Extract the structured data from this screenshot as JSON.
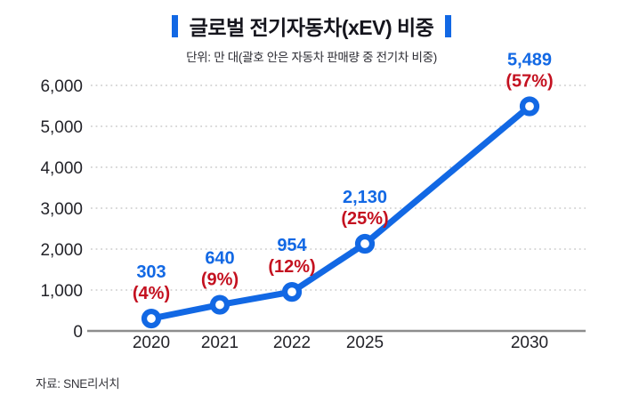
{
  "title": "글로벌 전기자동차(xEV) 비중",
  "subtitle": "단위: 만 대(괄호 안은 자동차 판매량 중 전기차 비중)",
  "source": "자료: SNE리서치",
  "colors": {
    "accent_blue": "#1268e4",
    "percent_red": "#c41120",
    "grid": "#cbcbcb",
    "axis_line": "#8d8d8d",
    "tick_text": "#232329"
  },
  "chart_data": {
    "type": "line",
    "categories": [
      "2020",
      "2021",
      "2022",
      "2025",
      "2030"
    ],
    "values": [
      303,
      640,
      954,
      2130,
      5489
    ],
    "value_labels": [
      "303",
      "640",
      "954",
      "2,130",
      "5,489"
    ],
    "percent_labels": [
      "(4%)",
      "(9%)",
      "(12%)",
      "(25%)",
      "(57%)"
    ],
    "title": "글로벌 전기자동차(xEV) 비중",
    "subtitle": "단위: 만 대(괄호 안은 자동차 판매량 중 전기차 비중)",
    "xlabel": "",
    "ylabel": "",
    "ylim": [
      0,
      6000
    ],
    "yticks": [
      0,
      1000,
      2000,
      3000,
      4000,
      5000,
      6000
    ],
    "ytick_labels": [
      "0",
      "1,000",
      "2,000",
      "3,000",
      "4,000",
      "5,000",
      "6,000"
    ],
    "grid": "horizontal-dotted",
    "legend": "none",
    "marker": "open-circle",
    "source": "자료: SNE리서치"
  }
}
